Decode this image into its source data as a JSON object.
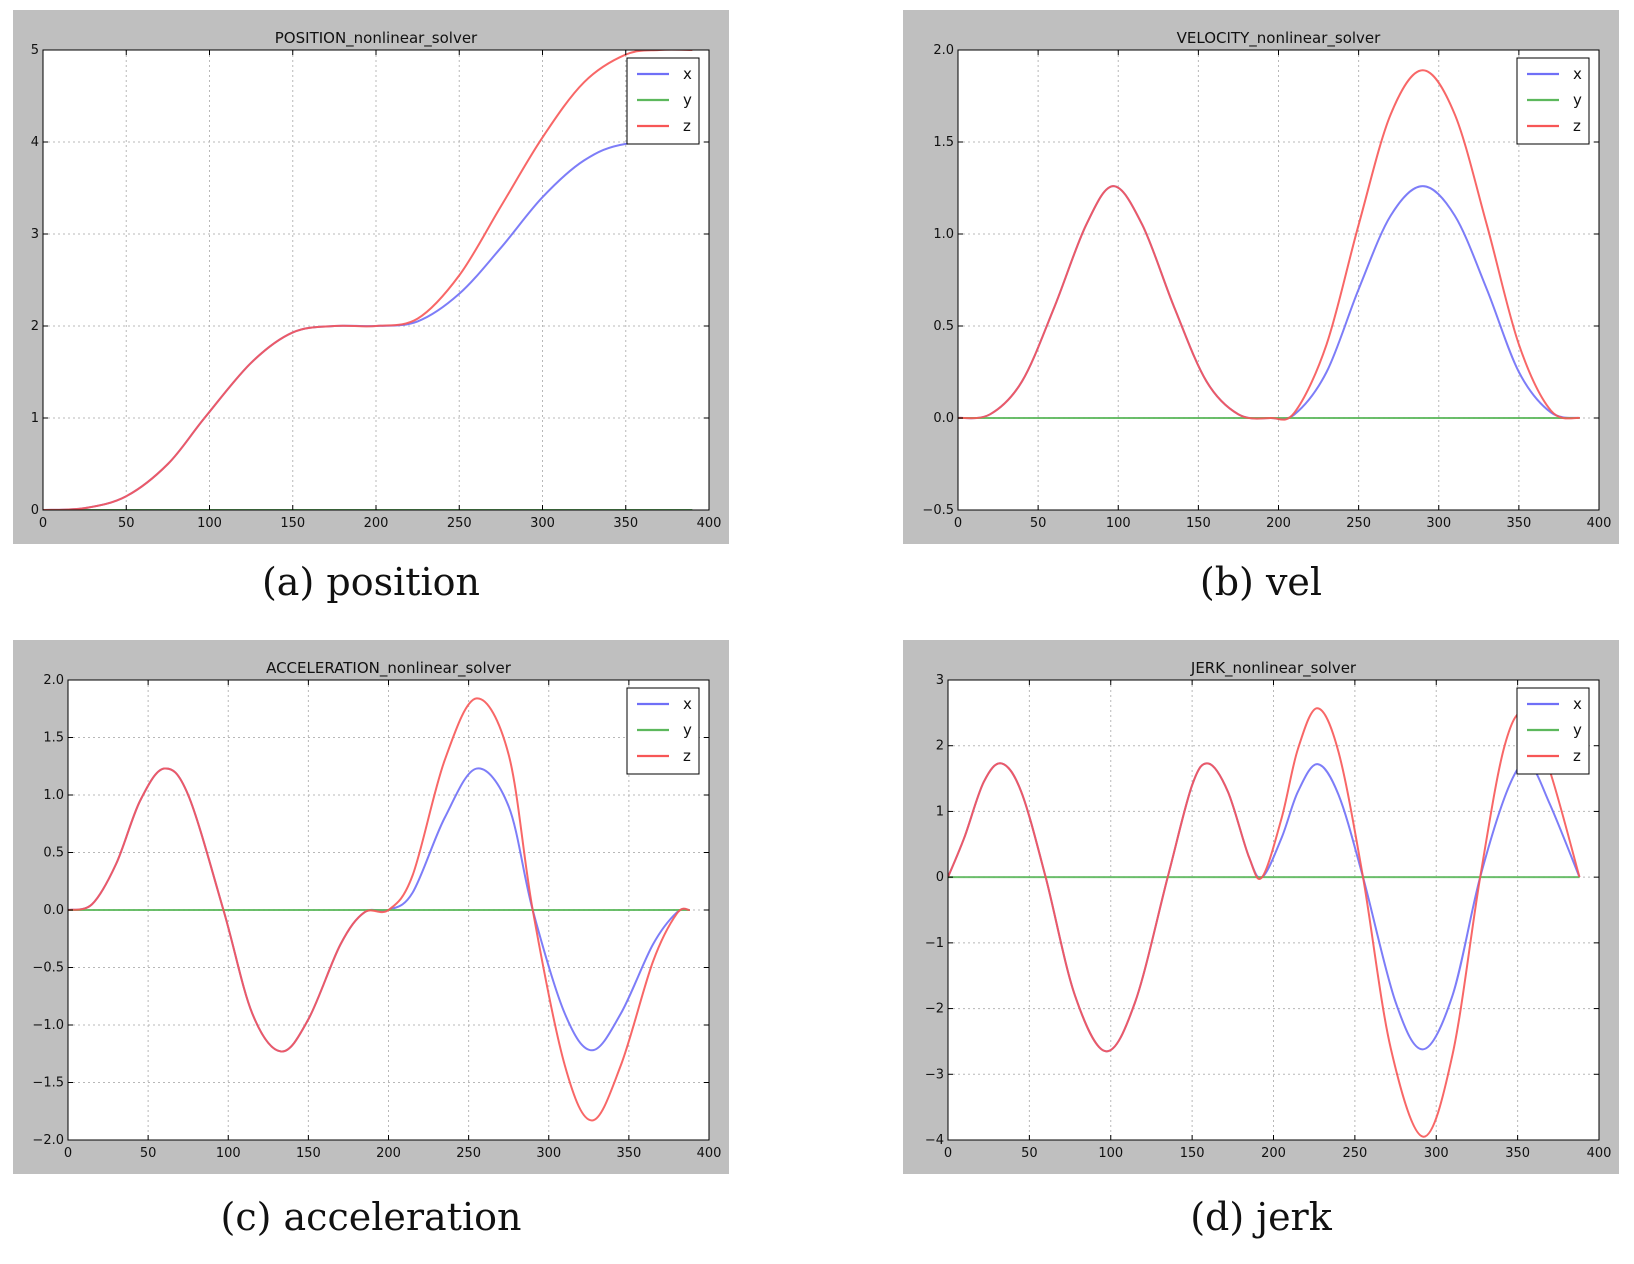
{
  "chart_data": [
    {
      "type": "line",
      "title": "POSITION_nonlinear_solver",
      "caption": "(a) position",
      "xlabel": "",
      "ylabel": "",
      "xlim": [
        0,
        400
      ],
      "ylim": [
        0,
        5
      ],
      "xticks": [
        0,
        50,
        100,
        150,
        200,
        250,
        300,
        350,
        400
      ],
      "xtick_labels": [
        "0",
        "50",
        "100",
        "150",
        "200",
        "250",
        "300",
        "350",
        "400"
      ],
      "yticks": [
        0,
        1,
        2,
        3,
        4,
        5
      ],
      "ytick_labels": [
        "0",
        "1",
        "2",
        "3",
        "4",
        "5"
      ],
      "grid": true,
      "legend": "top-right",
      "series": [
        {
          "name": "x",
          "color": "#6f6ff7",
          "points": [
            [
              0,
              0
            ],
            [
              25,
              0.02
            ],
            [
              50,
              0.15
            ],
            [
              75,
              0.5
            ],
            [
              97,
              1.0
            ],
            [
              125,
              1.6
            ],
            [
              150,
              1.93
            ],
            [
              175,
              2.0
            ],
            [
              200,
              2.0
            ],
            [
              225,
              2.05
            ],
            [
              250,
              2.35
            ],
            [
              275,
              2.85
            ],
            [
              300,
              3.4
            ],
            [
              325,
              3.8
            ],
            [
              350,
              3.98
            ],
            [
              390,
              4.0
            ]
          ]
        },
        {
          "name": "y",
          "color": "#5cb85c",
          "points": [
            [
              0,
              0
            ],
            [
              390,
              0
            ]
          ]
        },
        {
          "name": "z",
          "color": "#f75656",
          "points": [
            [
              0,
              0
            ],
            [
              25,
              0.02
            ],
            [
              50,
              0.15
            ],
            [
              75,
              0.5
            ],
            [
              97,
              1.0
            ],
            [
              125,
              1.6
            ],
            [
              150,
              1.93
            ],
            [
              175,
              2.0
            ],
            [
              200,
              2.0
            ],
            [
              225,
              2.08
            ],
            [
              250,
              2.55
            ],
            [
              275,
              3.3
            ],
            [
              300,
              4.05
            ],
            [
              325,
              4.65
            ],
            [
              350,
              4.95
            ],
            [
              370,
              5.0
            ],
            [
              390,
              5.0
            ]
          ]
        }
      ]
    },
    {
      "type": "line",
      "title": "VELOCITY_nonlinear_solver",
      "caption": "(b) vel",
      "xlabel": "",
      "ylabel": "",
      "xlim": [
        0,
        400
      ],
      "ylim": [
        -0.5,
        2.0
      ],
      "xticks": [
        0,
        50,
        100,
        150,
        200,
        250,
        300,
        350,
        400
      ],
      "xtick_labels": [
        "0",
        "50",
        "100",
        "150",
        "200",
        "250",
        "300",
        "350",
        "400"
      ],
      "yticks": [
        -0.5,
        0.0,
        0.5,
        1.0,
        1.5,
        2.0
      ],
      "ytick_labels": [
        "−0.5",
        "0.0",
        "0.5",
        "1.0",
        "1.5",
        "2.0"
      ],
      "grid": true,
      "legend": "top-right",
      "series": [
        {
          "name": "x",
          "color": "#6f6ff7",
          "points": [
            [
              0,
              0
            ],
            [
              20,
              0.02
            ],
            [
              40,
              0.2
            ],
            [
              60,
              0.6
            ],
            [
              80,
              1.05
            ],
            [
              97,
              1.26
            ],
            [
              115,
              1.05
            ],
            [
              135,
              0.6
            ],
            [
              155,
              0.2
            ],
            [
              175,
              0.02
            ],
            [
              195,
              0
            ],
            [
              210,
              0.02
            ],
            [
              230,
              0.25
            ],
            [
              250,
              0.7
            ],
            [
              270,
              1.1
            ],
            [
              290,
              1.26
            ],
            [
              310,
              1.1
            ],
            [
              330,
              0.7
            ],
            [
              350,
              0.25
            ],
            [
              370,
              0.03
            ],
            [
              388,
              0
            ]
          ]
        },
        {
          "name": "y",
          "color": "#5cb85c",
          "points": [
            [
              0,
              0
            ],
            [
              388,
              0
            ]
          ]
        },
        {
          "name": "z",
          "color": "#f75656",
          "points": [
            [
              0,
              0
            ],
            [
              20,
              0.02
            ],
            [
              40,
              0.2
            ],
            [
              60,
              0.6
            ],
            [
              80,
              1.05
            ],
            [
              97,
              1.26
            ],
            [
              115,
              1.05
            ],
            [
              135,
              0.6
            ],
            [
              155,
              0.2
            ],
            [
              175,
              0.02
            ],
            [
              195,
              0
            ],
            [
              210,
              0.03
            ],
            [
              230,
              0.4
            ],
            [
              250,
              1.05
            ],
            [
              270,
              1.65
            ],
            [
              290,
              1.89
            ],
            [
              310,
              1.65
            ],
            [
              330,
              1.05
            ],
            [
              350,
              0.4
            ],
            [
              370,
              0.04
            ],
            [
              388,
              0
            ]
          ]
        }
      ]
    },
    {
      "type": "line",
      "title": "ACCELERATION_nonlinear_solver",
      "caption": "(c) acceleration",
      "xlabel": "",
      "ylabel": "",
      "xlim": [
        0,
        400
      ],
      "ylim": [
        -2.0,
        2.0
      ],
      "xticks": [
        0,
        50,
        100,
        150,
        200,
        250,
        300,
        350,
        400
      ],
      "xtick_labels": [
        "0",
        "50",
        "100",
        "150",
        "200",
        "250",
        "300",
        "350",
        "400"
      ],
      "yticks": [
        -2.0,
        -1.5,
        -1.0,
        -0.5,
        0.0,
        0.5,
        1.0,
        1.5,
        2.0
      ],
      "ytick_labels": [
        "−2.0",
        "−1.5",
        "−1.0",
        "−0.5",
        "0.0",
        "0.5",
        "1.0",
        "1.5",
        "2.0"
      ],
      "grid": true,
      "legend": "top-right",
      "series": [
        {
          "name": "x",
          "color": "#6f6ff7",
          "points": [
            [
              0,
              0
            ],
            [
              15,
              0.05
            ],
            [
              30,
              0.4
            ],
            [
              45,
              0.95
            ],
            [
              60,
              1.23
            ],
            [
              75,
              1.0
            ],
            [
              97,
              0
            ],
            [
              115,
              -0.9
            ],
            [
              133,
              -1.23
            ],
            [
              150,
              -0.95
            ],
            [
              170,
              -0.3
            ],
            [
              185,
              -0.02
            ],
            [
              200,
              0
            ],
            [
              215,
              0.15
            ],
            [
              235,
              0.8
            ],
            [
              255,
              1.23
            ],
            [
              275,
              0.9
            ],
            [
              290,
              0
            ],
            [
              310,
              -0.9
            ],
            [
              327,
              -1.22
            ],
            [
              345,
              -0.9
            ],
            [
              365,
              -0.3
            ],
            [
              380,
              -0.02
            ],
            [
              388,
              0
            ]
          ]
        },
        {
          "name": "y",
          "color": "#5cb85c",
          "points": [
            [
              0,
              0
            ],
            [
              388,
              0
            ]
          ]
        },
        {
          "name": "z",
          "color": "#f75656",
          "points": [
            [
              0,
              0
            ],
            [
              15,
              0.05
            ],
            [
              30,
              0.4
            ],
            [
              45,
              0.95
            ],
            [
              60,
              1.23
            ],
            [
              75,
              1.0
            ],
            [
              97,
              0
            ],
            [
              115,
              -0.9
            ],
            [
              133,
              -1.23
            ],
            [
              150,
              -0.95
            ],
            [
              170,
              -0.3
            ],
            [
              185,
              -0.02
            ],
            [
              200,
              0
            ],
            [
              215,
              0.3
            ],
            [
              235,
              1.3
            ],
            [
              255,
              1.84
            ],
            [
              275,
              1.35
            ],
            [
              290,
              0
            ],
            [
              310,
              -1.35
            ],
            [
              327,
              -1.83
            ],
            [
              345,
              -1.35
            ],
            [
              365,
              -0.45
            ],
            [
              380,
              -0.03
            ],
            [
              388,
              0
            ]
          ]
        }
      ]
    },
    {
      "type": "line",
      "title": "JERK_nonlinear_solver",
      "caption": "(d) jerk",
      "xlabel": "",
      "ylabel": "",
      "xlim": [
        0,
        400
      ],
      "ylim": [
        -4,
        3
      ],
      "xticks": [
        0,
        50,
        100,
        150,
        200,
        250,
        300,
        350,
        400
      ],
      "xtick_labels": [
        "0",
        "50",
        "100",
        "150",
        "200",
        "250",
        "300",
        "350",
        "400"
      ],
      "yticks": [
        -4,
        -3,
        -2,
        -1,
        0,
        1,
        2,
        3
      ],
      "ytick_labels": [
        "−4",
        "−3",
        "−2",
        "−1",
        "0",
        "1",
        "2",
        "3"
      ],
      "grid": true,
      "legend": "top-right",
      "series": [
        {
          "name": "x",
          "color": "#6f6ff7",
          "points": [
            [
              0,
              0
            ],
            [
              10,
              0.6
            ],
            [
              22,
              1.45
            ],
            [
              33,
              1.73
            ],
            [
              45,
              1.3
            ],
            [
              60,
              0
            ],
            [
              78,
              -1.8
            ],
            [
              97,
              -2.65
            ],
            [
              115,
              -1.9
            ],
            [
              135,
              0
            ],
            [
              150,
              1.4
            ],
            [
              160,
              1.73
            ],
            [
              172,
              1.3
            ],
            [
              185,
              0.3
            ],
            [
              193,
              0
            ],
            [
              205,
              0.6
            ],
            [
              215,
              1.3
            ],
            [
              227,
              1.72
            ],
            [
              240,
              1.25
            ],
            [
              255,
              0
            ],
            [
              275,
              -1.9
            ],
            [
              292,
              -2.62
            ],
            [
              310,
              -1.8
            ],
            [
              327,
              0
            ],
            [
              345,
              1.4
            ],
            [
              357,
              1.72
            ],
            [
              370,
              1.1
            ],
            [
              388,
              0
            ]
          ]
        },
        {
          "name": "y",
          "color": "#5cb85c",
          "points": [
            [
              0,
              0
            ],
            [
              388,
              0
            ]
          ]
        },
        {
          "name": "z",
          "color": "#f75656",
          "points": [
            [
              0,
              0
            ],
            [
              10,
              0.6
            ],
            [
              22,
              1.45
            ],
            [
              33,
              1.73
            ],
            [
              45,
              1.3
            ],
            [
              60,
              0
            ],
            [
              78,
              -1.8
            ],
            [
              97,
              -2.65
            ],
            [
              115,
              -1.9
            ],
            [
              135,
              0
            ],
            [
              150,
              1.4
            ],
            [
              160,
              1.73
            ],
            [
              172,
              1.3
            ],
            [
              185,
              0.3
            ],
            [
              193,
              0
            ],
            [
              205,
              0.9
            ],
            [
              215,
              1.95
            ],
            [
              227,
              2.57
            ],
            [
              240,
              1.9
            ],
            [
              255,
              0
            ],
            [
              272,
              -2.6
            ],
            [
              292,
              -3.95
            ],
            [
              310,
              -2.7
            ],
            [
              327,
              0
            ],
            [
              342,
              2.0
            ],
            [
              355,
              2.5
            ],
            [
              370,
              1.6
            ],
            [
              388,
              0
            ]
          ]
        }
      ]
    }
  ]
}
